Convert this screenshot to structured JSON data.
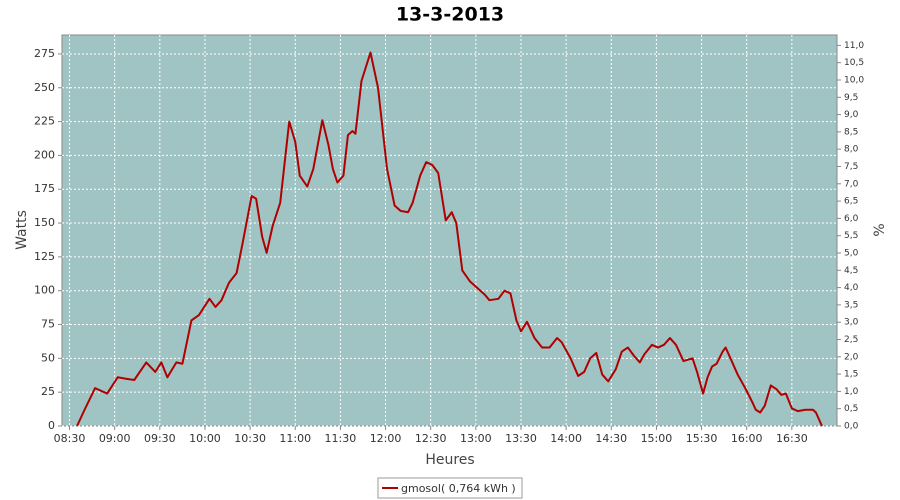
{
  "chart_data": {
    "type": "line",
    "title": "13-3-2013",
    "x_label": "Heures",
    "y_label": "Watts",
    "y2_label": "%",
    "x": [
      "08:35",
      "08:40",
      "08:47",
      "08:55",
      "09:02",
      "09:07",
      "09:13",
      "09:21",
      "09:27",
      "09:31",
      "09:35",
      "09:41",
      "09:45",
      "09:51",
      "09:56",
      "10:03",
      "10:07",
      "10:11",
      "10:16",
      "10:21",
      "10:25",
      "10:31",
      "10:34",
      "10:38",
      "10:41",
      "10:45",
      "10:50",
      "10:56",
      "11:00",
      "11:03",
      "11:08",
      "11:12",
      "11:18",
      "11:22",
      "11:25",
      "11:28",
      "11:32",
      "11:35",
      "11:38",
      "11:40",
      "11:44",
      "11:50",
      "11:55",
      "12:01",
      "12:06",
      "12:10",
      "12:15",
      "12:18",
      "12:23",
      "12:27",
      "12:31",
      "12:35",
      "12:40",
      "12:44",
      "12:47",
      "12:51",
      "12:56",
      "13:01",
      "13:06",
      "13:09",
      "13:15",
      "13:19",
      "13:23",
      "13:27",
      "13:30",
      "13:34",
      "13:39",
      "13:44",
      "13:49",
      "13:54",
      "13:57",
      "14:03",
      "14:08",
      "14:12",
      "14:16",
      "14:20",
      "14:24",
      "14:28",
      "14:33",
      "14:37",
      "14:41",
      "14:45",
      "14:49",
      "14:52",
      "14:57",
      "15:01",
      "15:05",
      "15:09",
      "15:13",
      "15:18",
      "15:24",
      "15:27",
      "15:31",
      "15:34",
      "15:37",
      "15:40",
      "15:44",
      "15:46",
      "15:50",
      "15:54",
      "15:59",
      "16:04",
      "16:06",
      "16:09",
      "16:12",
      "16:16",
      "16:20",
      "16:23",
      "16:26",
      "16:30",
      "16:34",
      "16:39",
      "16:44",
      "16:46",
      "16:50"
    ],
    "series": [
      {
        "name": "gmosol( 0,764 kWh )",
        "color": "#b00000",
        "values": [
          0,
          12,
          28,
          24,
          36,
          35,
          34,
          47,
          40,
          47,
          36,
          47,
          46,
          78,
          82,
          94,
          88,
          93,
          106,
          113,
          135,
          170,
          168,
          140,
          128,
          148,
          165,
          225,
          210,
          185,
          177,
          190,
          226,
          208,
          190,
          180,
          185,
          215,
          218,
          216,
          255,
          276,
          250,
          190,
          163,
          159,
          158,
          165,
          185,
          195,
          193,
          187,
          152,
          158,
          150,
          115,
          107,
          102,
          97,
          93,
          94,
          100,
          98,
          78,
          70,
          77,
          65,
          58,
          58,
          65,
          62,
          50,
          37,
          40,
          50,
          54,
          38,
          33,
          42,
          55,
          58,
          52,
          47,
          53,
          60,
          58,
          60,
          65,
          60,
          48,
          50,
          40,
          24,
          36,
          44,
          46,
          55,
          58,
          48,
          38,
          28,
          17,
          12,
          10,
          15,
          30,
          27,
          23,
          24,
          13,
          11,
          12,
          12,
          10,
          0
        ]
      }
    ],
    "xlim": [
      "08:25",
      "17:00"
    ],
    "xticks": [
      "08:30",
      "09:00",
      "09:30",
      "10:00",
      "10:30",
      "11:00",
      "11:30",
      "12:00",
      "12:30",
      "13:00",
      "13:30",
      "14:00",
      "14:30",
      "15:00",
      "15:30",
      "16:00",
      "16:30"
    ],
    "ylim": [
      0,
      289
    ],
    "yticks": [
      0,
      25,
      50,
      75,
      100,
      125,
      150,
      175,
      200,
      225,
      250,
      275
    ],
    "y2lim": [
      0,
      11.3
    ],
    "y2ticks": [
      {
        "value": 0,
        "label": "0,0"
      },
      {
        "value": 0.5,
        "label": "0,5"
      },
      {
        "value": 1,
        "label": "1,0"
      },
      {
        "value": 1.5,
        "label": "1,5"
      },
      {
        "value": 2,
        "label": "2,0"
      },
      {
        "value": 2.5,
        "label": "2,5"
      },
      {
        "value": 3,
        "label": "3,0"
      },
      {
        "value": 3.5,
        "label": "3,5"
      },
      {
        "value": 4,
        "label": "4,0"
      },
      {
        "value": 4.5,
        "label": "4,5"
      },
      {
        "value": 5,
        "label": "5,0"
      },
      {
        "value": 5.5,
        "label": "5,5"
      },
      {
        "value": 6,
        "label": "6,0"
      },
      {
        "value": 6.5,
        "label": "6,5"
      },
      {
        "value": 7,
        "label": "7,0"
      },
      {
        "value": 7.5,
        "label": "7,5"
      },
      {
        "value": 8,
        "label": "8,0"
      },
      {
        "value": 8.5,
        "label": "8,5"
      },
      {
        "value": 9,
        "label": "9,0"
      },
      {
        "value": 9.5,
        "label": "9,5"
      },
      {
        "value": 10,
        "label": "10,0"
      },
      {
        "value": 10.5,
        "label": "10,5"
      },
      {
        "value": 11,
        "label": "11,0"
      }
    ],
    "grid": true,
    "plot_background": "#a0c4c4",
    "legend": "bottom"
  }
}
